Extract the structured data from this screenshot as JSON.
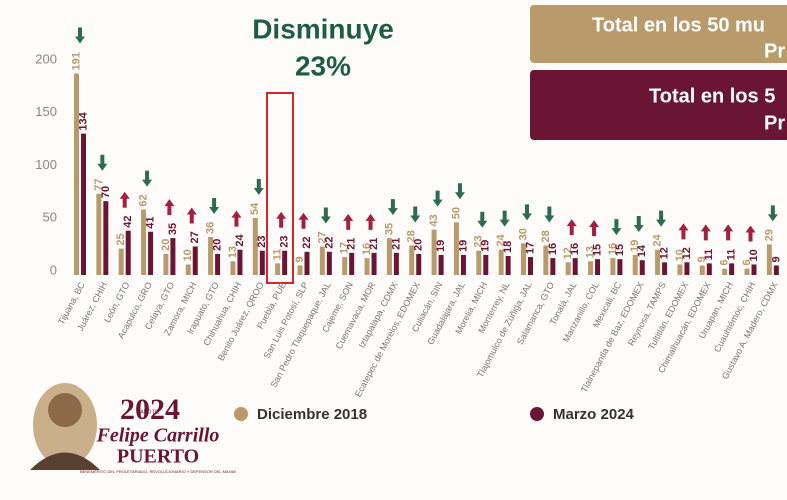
{
  "chart_data": {
    "type": "bar",
    "annotation": {
      "line1": "Disminuye",
      "line2": "23%"
    },
    "panels": [
      {
        "line1": "Total en los 50 mu",
        "line2": "Pr"
      },
      {
        "line1": "Total en los 5",
        "line2": "Pr"
      }
    ],
    "categories": [
      "Tijuana, BC",
      "Juárez, CHIH",
      "León, GTO",
      "Acapulco, GRO",
      "Celaya, GTO",
      "Zamora, MICH",
      "Irapuato, GTO",
      "Chihuahua, CHIH",
      "Benito Juárez, QROO",
      "Puebla, PUE",
      "San Luis Potosí, SLP",
      "San Pedro Tlaquepaque, JAL",
      "Cajeme, SON",
      "Cuernavaca, MOR",
      "Iztapalapa, CDMX",
      "Ecatepec de Morelos, EDOMEX",
      "Culiacán, SIN",
      "Guadalajara, JAL",
      "Morelia, MICH",
      "Monterrey, NL",
      "Tlajomulco de Zúñiga, JAL",
      "Salamanca, GTO",
      "Tonalá, JAL",
      "Manzanillo, COL",
      "Mexicali, BC",
      "Tlalnepantla de Baz, EDOMEX",
      "Reynosa, TAMPS",
      "Tultitlán, EDOMEX",
      "Chimalhuacán, EDOMEX",
      "Uruapan, MICH",
      "Cuauhtémoc, CHIH",
      "Gustavo A. Madero, CDMX"
    ],
    "series": [
      {
        "name": "Diciembre 2018",
        "color": "#b99b6b",
        "values": [
          191,
          77,
          25,
          62,
          20,
          10,
          36,
          13,
          54,
          11,
          9,
          27,
          17,
          16,
          35,
          28,
          43,
          50,
          23,
          24,
          30,
          28,
          12,
          13,
          16,
          19,
          24,
          10,
          9,
          6,
          6,
          29
        ]
      },
      {
        "name": "Marzo 2024",
        "color": "#6a1533",
        "values": [
          134,
          70,
          42,
          41,
          35,
          27,
          20,
          24,
          23,
          23,
          22,
          22,
          21,
          21,
          21,
          20,
          19,
          19,
          19,
          18,
          17,
          16,
          16,
          15,
          15,
          14,
          12,
          12,
          11,
          11,
          10,
          9
        ]
      }
    ],
    "arrow_colors": {
      "down": "#2e6b50",
      "up": "#a3203e"
    },
    "ylim": [
      0,
      200
    ],
    "yticks": [
      0,
      50,
      100,
      150,
      200
    ],
    "logo": {
      "year": "2024",
      "year_caption": "AÑO DE",
      "name1": "Felipe Carrillo",
      "name2": "PUERTO",
      "caption": "BENEMÉRITO DEL PROLETARIADO, REVOLUCIONARIO Y DEFENSOR DEL MAYAB"
    }
  }
}
